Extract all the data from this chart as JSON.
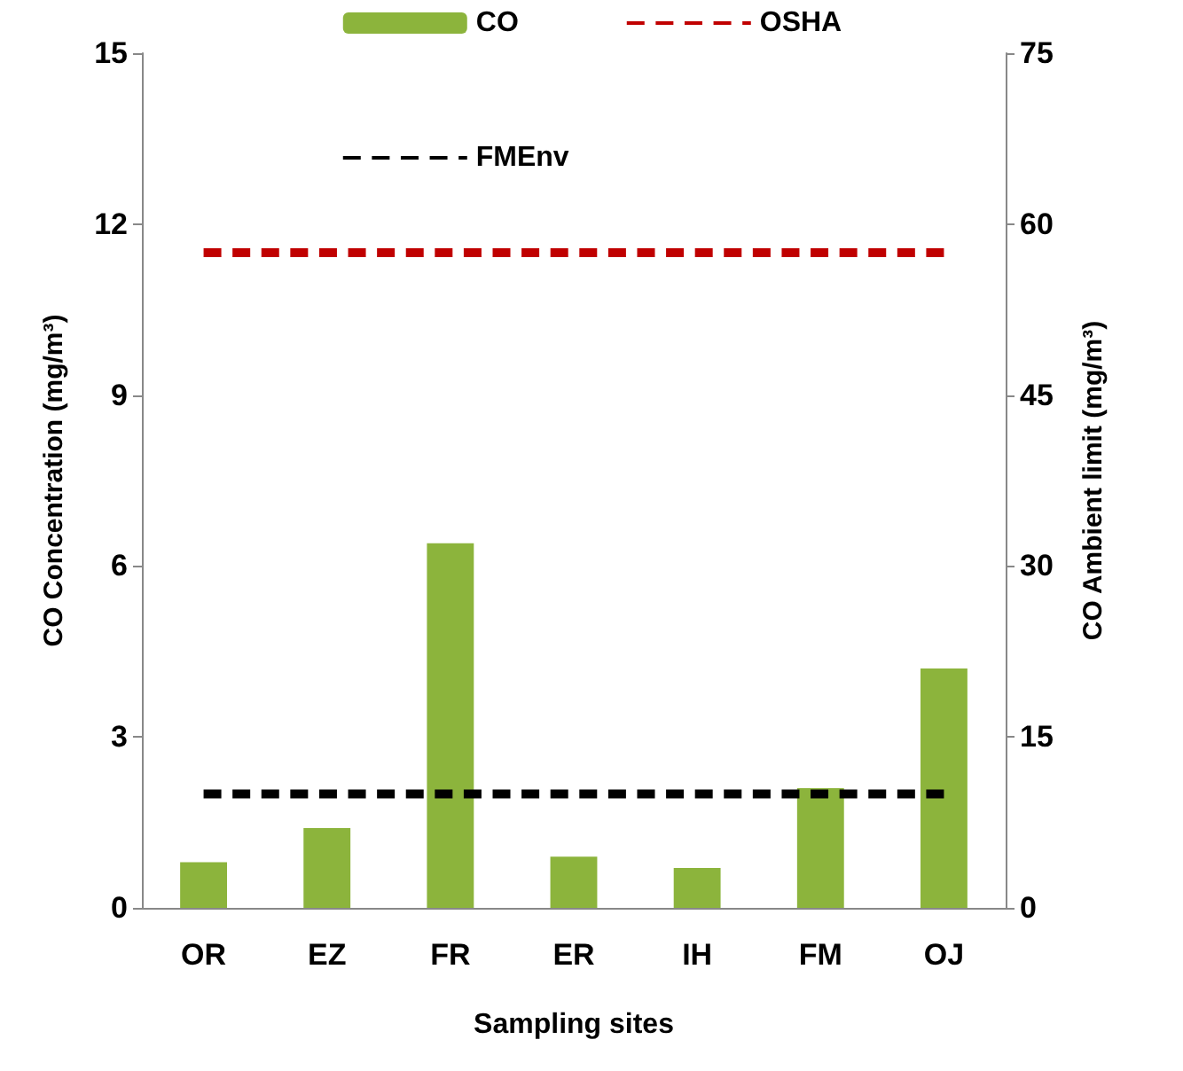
{
  "chart_data": {
    "type": "bar",
    "xlabel": "Sampling sites",
    "ylabel": "CO Concentration (mg/m³)",
    "y2label": "CO Ambient limit (mg/m³)",
    "categories": [
      "OR",
      "EZ",
      "FR",
      "ER",
      "IH",
      "FM",
      "OJ"
    ],
    "series": [
      {
        "name": "CO",
        "color": "#8cb43c",
        "values": [
          0.8,
          1.4,
          6.4,
          0.9,
          0.7,
          2.1,
          4.2
        ]
      },
      {
        "name": "OSHA",
        "type": "line",
        "axis": "y2",
        "color": "#c00000",
        "marker": "none",
        "line_style": "dashed",
        "values": [
          57.5,
          57.5,
          57.5,
          57.5,
          57.5,
          57.5,
          57.5
        ]
      },
      {
        "name": "FMEnv",
        "type": "line",
        "axis": "y2",
        "color": "#000000",
        "marker": "none",
        "line_style": "dashed",
        "values": [
          10,
          10,
          10,
          10,
          10,
          10,
          10
        ]
      }
    ],
    "ylim": [
      0,
      15
    ],
    "yticks": [
      0,
      3,
      6,
      9,
      12,
      15
    ],
    "y2lim": [
      0,
      75
    ],
    "y2ticks": [
      0,
      15,
      30,
      45,
      60,
      75
    ],
    "grid": false,
    "legend": "top"
  }
}
